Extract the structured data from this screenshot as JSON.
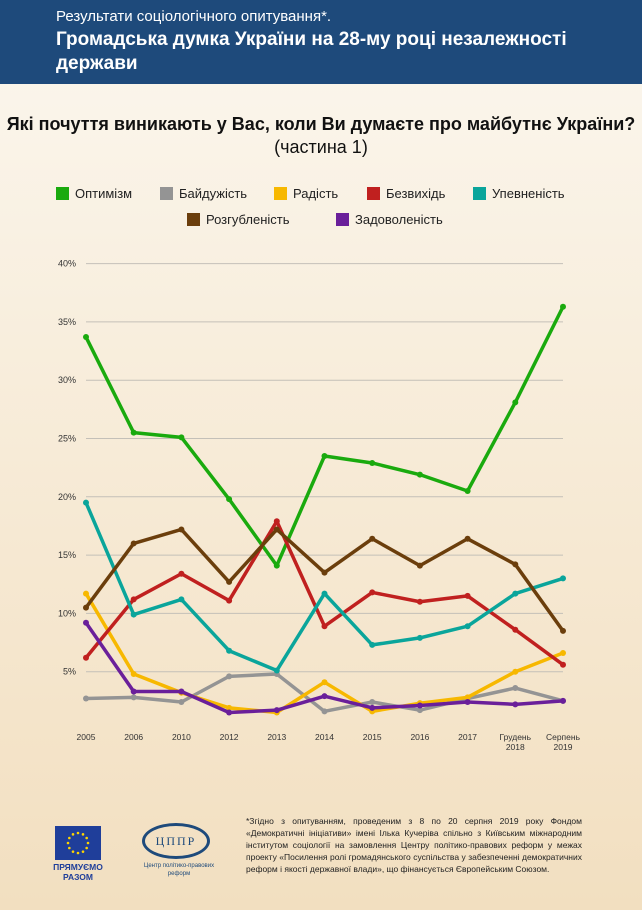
{
  "header": {
    "subtitle": "Результати соціологічного опитування*.",
    "title": "Громадська думка України на 28-му році незалежності держави"
  },
  "chart_title": {
    "bold": "Які почуття виникають у Вас, коли Ви думаєте про майбутнє України?",
    "normal": " (частина 1)"
  },
  "chart_data": {
    "type": "line",
    "title": "Які почуття виникають у Вас, коли Ви думаєте про майбутнє України? (частина 1)",
    "categories": [
      "2005",
      "2006",
      "2010",
      "2012",
      "2013",
      "2014",
      "2015",
      "2016",
      "2017",
      "Грудень 2018",
      "Серпень 2019"
    ],
    "category_lines": [
      [
        "2005"
      ],
      [
        "2006"
      ],
      [
        "2010"
      ],
      [
        "2012"
      ],
      [
        "2013"
      ],
      [
        "2014"
      ],
      [
        "2015"
      ],
      [
        "2016"
      ],
      [
        "2017"
      ],
      [
        "Грудень",
        "2018"
      ],
      [
        "Серпень",
        "2019"
      ]
    ],
    "yticks": [
      "5%",
      "10%",
      "15%",
      "20%",
      "25%",
      "30%",
      "35%",
      "40%"
    ],
    "ylim": [
      0,
      40
    ],
    "grid": true,
    "legend_position": "top",
    "series": [
      {
        "name": "Оптимізм",
        "color": "#1aaa0e",
        "values": [
          33.7,
          25.5,
          25.1,
          19.8,
          14.1,
          23.5,
          22.9,
          21.9,
          20.5,
          28.1,
          36.3
        ]
      },
      {
        "name": "Байдужість",
        "color": "#949494",
        "values": [
          2.7,
          2.8,
          2.4,
          4.6,
          4.8,
          1.6,
          2.4,
          1.7,
          2.7,
          3.6,
          2.5
        ]
      },
      {
        "name": "Радість",
        "color": "#f7b800",
        "values": [
          11.7,
          4.8,
          3.2,
          1.9,
          1.5,
          4.1,
          1.6,
          2.3,
          2.8,
          5.0,
          6.6
        ]
      },
      {
        "name": "Безвихідь",
        "color": "#c0201f",
        "values": [
          6.2,
          11.2,
          13.4,
          11.1,
          17.9,
          8.9,
          11.8,
          11.0,
          11.5,
          8.6,
          5.6
        ]
      },
      {
        "name": "Упевненість",
        "color": "#0aa59b",
        "values": [
          19.5,
          9.9,
          11.2,
          6.8,
          5.1,
          11.7,
          7.3,
          7.9,
          8.9,
          11.7,
          13.0
        ]
      },
      {
        "name": "Розгубленість",
        "color": "#6b3e0c",
        "values": [
          10.5,
          16.0,
          17.2,
          12.7,
          17.2,
          13.5,
          16.4,
          14.1,
          16.4,
          14.2,
          8.5
        ]
      },
      {
        "name": "Задоволеність",
        "color": "#6a1f9a",
        "values": [
          9.2,
          3.3,
          3.3,
          1.5,
          1.7,
          2.9,
          1.9,
          2.1,
          2.4,
          2.2,
          2.5
        ]
      }
    ]
  },
  "logos": {
    "eu": "ПРЯМУЄМО РАЗОМ",
    "cppr": "ЦППР",
    "cppr_caption": "Центр політико-правових реформ"
  },
  "footnote": "*Згідно з опитуванням, проведеним з 8 по 20 серпня 2019 року Фондом «Демократичні ініціативи» імені Ілька Кучеріва спільно з Київським міжнародним інститутом соціології на замовлення Центру політико-правових реформ у межах проекту «Посилення ролі громадянського суспільства у забезпеченні демократичних реформ і якості державної влади», що фінансується Європейським Союзом."
}
